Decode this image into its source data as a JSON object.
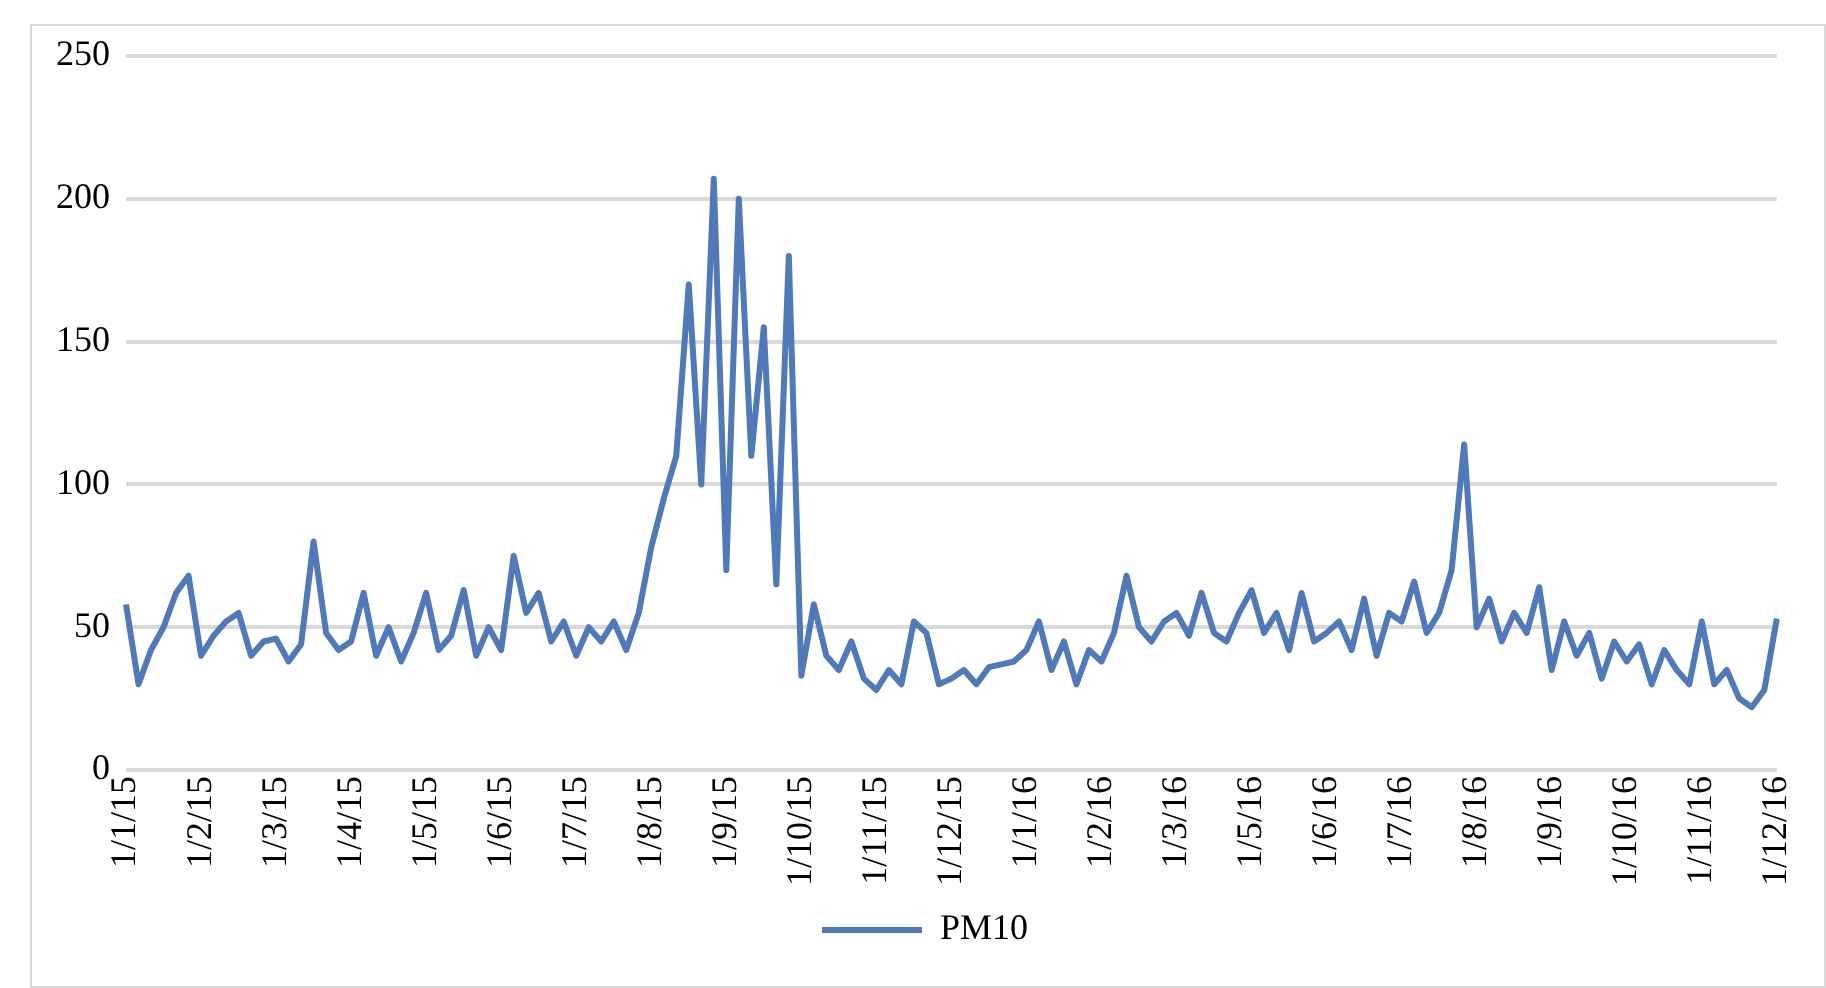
{
  "chart_data": {
    "type": "line",
    "categories": [
      "1/1/15",
      null,
      null,
      null,
      null,
      null,
      "1/2/15",
      null,
      null,
      null,
      null,
      null,
      "1/3/15",
      null,
      null,
      null,
      null,
      null,
      "1/4/15",
      null,
      null,
      null,
      null,
      null,
      "1/5/15",
      null,
      null,
      null,
      null,
      null,
      "1/6/15",
      null,
      null,
      null,
      null,
      null,
      "1/7/15",
      null,
      null,
      null,
      null,
      null,
      "1/8/15",
      null,
      null,
      null,
      null,
      null,
      "1/9/15",
      null,
      null,
      null,
      null,
      null,
      "1/10/15",
      null,
      null,
      null,
      null,
      null,
      "1/11/15",
      null,
      null,
      null,
      null,
      null,
      "1/12/15",
      null,
      null,
      null,
      null,
      null,
      "1/1/16",
      null,
      null,
      null,
      null,
      null,
      "1/2/16",
      null,
      null,
      null,
      null,
      null,
      "1/3/16",
      null,
      null,
      null,
      null,
      null,
      "1/5/16",
      null,
      null,
      null,
      null,
      null,
      "1/6/16",
      null,
      null,
      null,
      null,
      null,
      "1/7/16",
      null,
      null,
      null,
      null,
      null,
      "1/8/16",
      null,
      null,
      null,
      null,
      null,
      "1/9/16",
      null,
      null,
      null,
      null,
      null,
      "1/10/16",
      null,
      null,
      null,
      null,
      null,
      "1/11/16",
      null,
      null,
      null,
      null,
      null,
      "1/12/16"
    ],
    "series": [
      {
        "name": "PM10",
        "color": "#4f79b8",
        "values": [
          58,
          30,
          42,
          50,
          62,
          68,
          40,
          47,
          52,
          55,
          40,
          45,
          46,
          38,
          44,
          80,
          48,
          42,
          45,
          62,
          40,
          50,
          38,
          48,
          62,
          42,
          47,
          63,
          40,
          50,
          42,
          75,
          55,
          62,
          45,
          52,
          40,
          50,
          45,
          52,
          42,
          55,
          78,
          95,
          110,
          170,
          100,
          207,
          70,
          200,
          110,
          155,
          65,
          180,
          33,
          58,
          40,
          35,
          45,
          32,
          28,
          35,
          30,
          52,
          48,
          30,
          32,
          35,
          30,
          36,
          37,
          38,
          42,
          52,
          35,
          45,
          30,
          42,
          38,
          48,
          68,
          50,
          45,
          52,
          55,
          47,
          62,
          48,
          45,
          55,
          63,
          48,
          55,
          42,
          62,
          45,
          48,
          52,
          42,
          60,
          40,
          55,
          52,
          66,
          48,
          55,
          70,
          114,
          50,
          60,
          45,
          55,
          48,
          64,
          35,
          52,
          40,
          48,
          32,
          45,
          38,
          44,
          30,
          42,
          35,
          30,
          52,
          30,
          35,
          25,
          22,
          28,
          53
        ]
      }
    ],
    "ylim": [
      0,
      250
    ],
    "yticks": [
      0,
      50,
      100,
      150,
      200,
      250
    ],
    "grid": "y",
    "legend": "bottom",
    "marker": "none",
    "line_style": "solid"
  }
}
